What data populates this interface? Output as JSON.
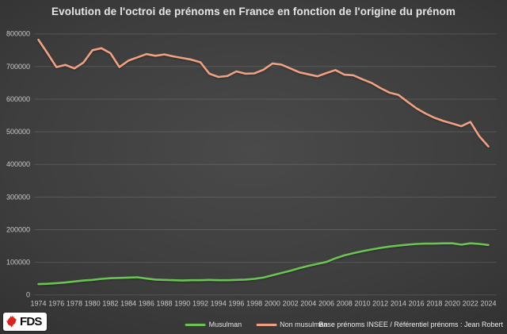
{
  "title": "Evolution de l'octroi de prénoms en France en fonction de l'origine du prénom",
  "footer": {
    "logo_text": "FDS",
    "logo_icon": "rooster-icon",
    "attribution": "Base prénoms INSEE / Référentiel prénoms : Jean Robert"
  },
  "colors": {
    "background_center": "#4a4a4a",
    "background_edge": "#2b2b2b",
    "grid": "#525252",
    "title_text": "#e6e6e6",
    "axis_text": "#c9c9c9",
    "musulman_green": "#6cc355",
    "non_musulman_salmon": "#efa181",
    "logo_red": "#d9251c"
  },
  "chart_data": {
    "type": "line",
    "title": "Evolution de l'octroi de prénoms en France en fonction de l'origine du prénom",
    "xlabel": "",
    "ylabel": "",
    "ylim": [
      0,
      800000
    ],
    "y_ticks": [
      0,
      100000,
      200000,
      300000,
      400000,
      500000,
      600000,
      700000,
      800000
    ],
    "x_tick_step": 2,
    "grid": "horizontal",
    "legend_position": "bottom",
    "x": [
      1974,
      1975,
      1976,
      1977,
      1978,
      1979,
      1980,
      1981,
      1982,
      1983,
      1984,
      1985,
      1986,
      1987,
      1988,
      1989,
      1990,
      1991,
      1992,
      1993,
      1994,
      1995,
      1996,
      1997,
      1998,
      1999,
      2000,
      2001,
      2002,
      2003,
      2004,
      2005,
      2006,
      2007,
      2008,
      2009,
      2010,
      2011,
      2012,
      2013,
      2014,
      2015,
      2016,
      2017,
      2018,
      2019,
      2020,
      2021,
      2022,
      2023,
      2024
    ],
    "series": [
      {
        "name": "Musulman",
        "color": "#6cc355",
        "values": [
          33000,
          34000,
          36000,
          38000,
          41000,
          44000,
          46000,
          49000,
          51000,
          52000,
          53000,
          54000,
          50000,
          47000,
          46000,
          45000,
          44000,
          45000,
          45000,
          46000,
          45000,
          45000,
          46000,
          47000,
          49000,
          53000,
          60000,
          67000,
          74000,
          82000,
          89000,
          95000,
          101000,
          112000,
          121000,
          128000,
          134000,
          139000,
          144000,
          148000,
          151000,
          154000,
          156000,
          157000,
          157000,
          158000,
          158000,
          154000,
          158000,
          156000,
          153000
        ]
      },
      {
        "name": "Non musulman",
        "color": "#efa181",
        "values": [
          782000,
          741000,
          698000,
          705000,
          694000,
          712000,
          750000,
          756000,
          741000,
          698000,
          718000,
          728000,
          738000,
          733000,
          737000,
          731000,
          726000,
          721000,
          713000,
          678000,
          668000,
          671000,
          685000,
          678000,
          679000,
          690000,
          709000,
          706000,
          694000,
          682000,
          676000,
          670000,
          680000,
          689000,
          675000,
          673000,
          661000,
          650000,
          634000,
          620000,
          613000,
          592000,
          572000,
          556000,
          543000,
          533000,
          525000,
          517000,
          530000,
          486000,
          455000
        ]
      }
    ]
  }
}
